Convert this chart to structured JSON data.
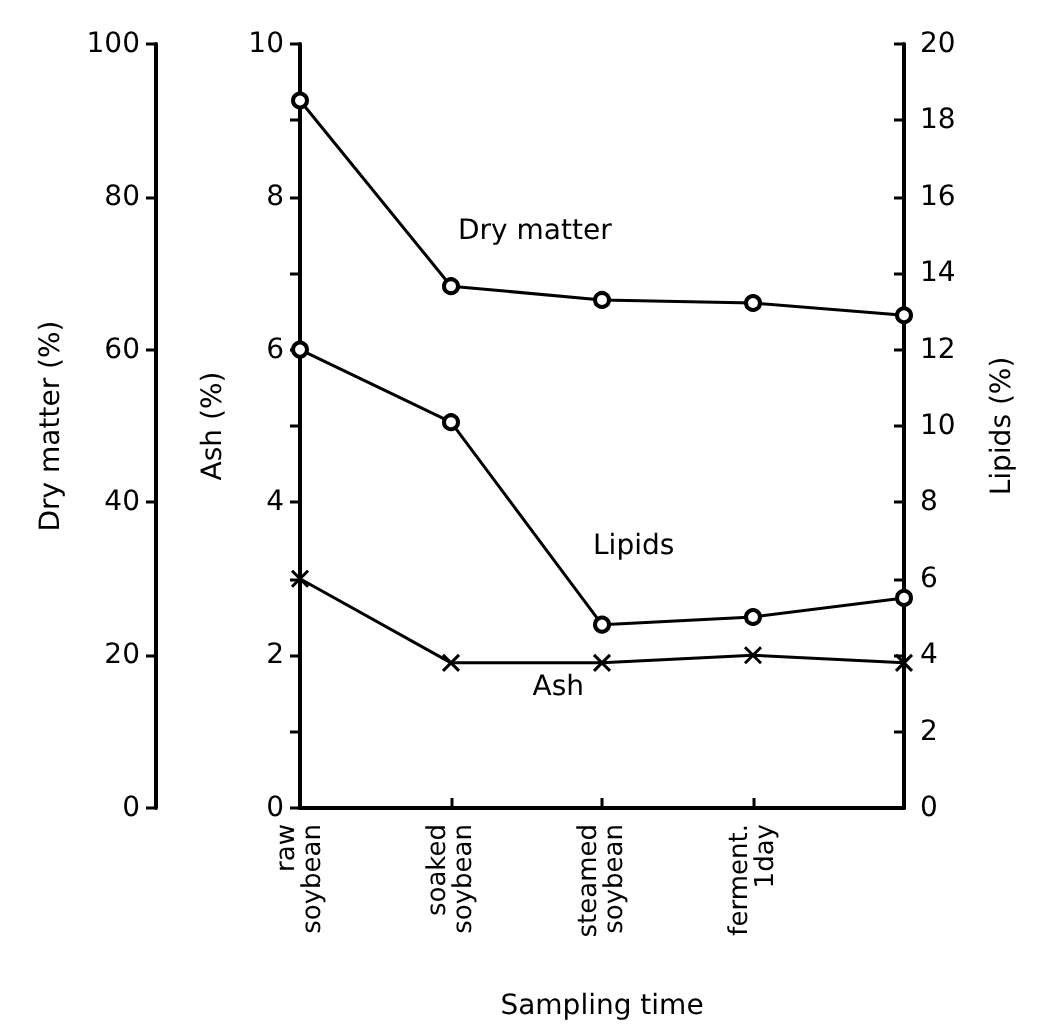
{
  "chart_data": {
    "type": "line",
    "xlabel": "Sampling time",
    "ylabel": "Dry matter (%)",
    "y2label": "Lipids (%)",
    "y3label": "Ash (%)",
    "categories": [
      "raw soybean",
      "soaked soybean",
      "steamed soybean",
      "ferment. 1day",
      null
    ],
    "series": [
      {
        "name": "Dry matter",
        "color": "#000000",
        "marker": "circle",
        "values": [
          92.6,
          68.3,
          66.5,
          66.1,
          64.5
        ]
      },
      {
        "name": "Lipids",
        "color": "#000000",
        "marker": "circle",
        "axis": "y2",
        "values": [
          12.0,
          10.1,
          4.8,
          5.0,
          5.5
        ]
      },
      {
        "name": "Ash",
        "color": "#000000",
        "marker": "cross",
        "axis": "y3",
        "values": [
          3.0,
          1.9,
          1.9,
          2.0,
          1.9
        ]
      }
    ],
    "ylim": [
      0,
      100
    ],
    "yticks": [
      0,
      20,
      40,
      60,
      80,
      100
    ],
    "y2lim": [
      0,
      20
    ],
    "y2ticks": [
      0,
      2,
      4,
      6,
      8,
      10,
      12,
      14,
      16,
      18,
      20
    ],
    "y3lim": [
      0,
      10
    ],
    "y3ticks": [
      0,
      {
        "value": 1,
        "label": null
      },
      2,
      {
        "value": 3,
        "label": null
      },
      4,
      {
        "value": 5,
        "label": null
      },
      6,
      {
        "value": 7,
        "label": null
      },
      8,
      {
        "value": 9,
        "label": null
      },
      10
    ],
    "grid": false,
    "legend": false,
    "line_style": "solid"
  }
}
